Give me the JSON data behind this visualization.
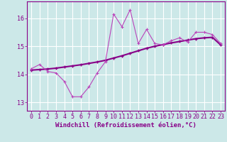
{
  "xlabel": "Windchill (Refroidissement éolien,°C)",
  "background_color": "#cce8e8",
  "grid_color": "#ffffff",
  "line_color": "#880088",
  "line2_color": "#bb44bb",
  "xlim": [
    -0.5,
    23.5
  ],
  "ylim": [
    12.7,
    16.6
  ],
  "yticks": [
    13,
    14,
    15,
    16
  ],
  "xticks": [
    0,
    1,
    2,
    3,
    4,
    5,
    6,
    7,
    8,
    9,
    10,
    11,
    12,
    13,
    14,
    15,
    16,
    17,
    18,
    19,
    20,
    21,
    22,
    23
  ],
  "series1_x": [
    0,
    1,
    2,
    3,
    4,
    5,
    6,
    7,
    8,
    9,
    10,
    11,
    12,
    13,
    14,
    15,
    16,
    17,
    18,
    19,
    20,
    21,
    22,
    23
  ],
  "series1_y": [
    14.2,
    14.35,
    14.1,
    14.05,
    13.75,
    13.2,
    13.2,
    13.55,
    14.05,
    14.45,
    16.15,
    15.7,
    16.3,
    15.1,
    15.6,
    15.1,
    15.05,
    15.2,
    15.3,
    15.15,
    15.5,
    15.5,
    15.42,
    15.1
  ],
  "series2_x": [
    0,
    1,
    2,
    3,
    4,
    5,
    6,
    7,
    8,
    9,
    10,
    11,
    12,
    13,
    14,
    15,
    16,
    17,
    18,
    19,
    20,
    21,
    22,
    23
  ],
  "series2_y": [
    14.15,
    14.17,
    14.19,
    14.22,
    14.26,
    14.3,
    14.34,
    14.39,
    14.44,
    14.5,
    14.58,
    14.66,
    14.75,
    14.84,
    14.93,
    15.0,
    15.06,
    15.12,
    15.17,
    15.22,
    15.27,
    15.3,
    15.32,
    15.05
  ],
  "tick_fontsize": 6,
  "xlabel_fontsize": 6.5
}
